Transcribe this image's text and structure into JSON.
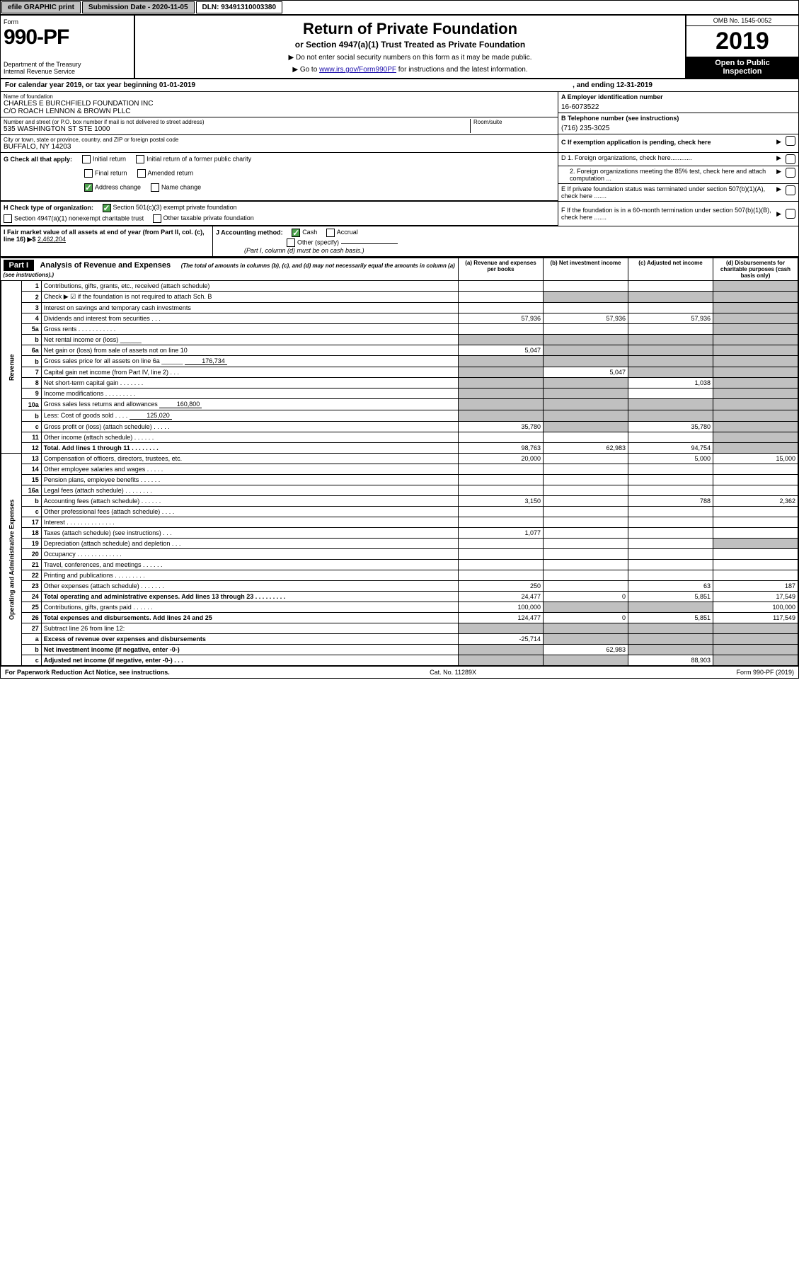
{
  "topbar": {
    "efile": "efile GRAPHIC print",
    "submission": "Submission Date - 2020-11-05",
    "dln": "DLN: 93491310003380"
  },
  "header": {
    "form_label": "Form",
    "form_no": "990-PF",
    "dept1": "Department of the Treasury",
    "dept2": "Internal Revenue Service",
    "title": "Return of Private Foundation",
    "subtitle": "or Section 4947(a)(1) Trust Treated as Private Foundation",
    "instr1": "▶ Do not enter social security numbers on this form as it may be made public.",
    "instr2_pre": "▶ Go to ",
    "instr2_link": "www.irs.gov/Form990PF",
    "instr2_post": " for instructions and the latest information.",
    "omb": "OMB No. 1545-0052",
    "year": "2019",
    "open_pub1": "Open to Public",
    "open_pub2": "Inspection"
  },
  "cal": {
    "pre": "For calendar year 2019, or tax year beginning 01-01-2019",
    "mid": ", and ending 12-31-2019"
  },
  "entity": {
    "name_lbl": "Name of foundation",
    "name1": "CHARLES E BURCHFIELD FOUNDATION INC",
    "name2": "C/O ROACH LENNON & BROWN PLLC",
    "addr_lbl": "Number and street (or P.O. box number if mail is not delivered to street address)",
    "addr": "535 WASHINGTON ST STE 1000",
    "room_lbl": "Room/suite",
    "city_lbl": "City or town, state or province, country, and ZIP or foreign postal code",
    "city": "BUFFALO, NY  14203",
    "a_lbl": "A Employer identification number",
    "a_val": "16-6073522",
    "b_lbl": "B Telephone number (see instructions)",
    "b_val": "(716) 235-3025",
    "c_lbl": "C If exemption application is pending, check here",
    "d1_lbl": "D 1. Foreign organizations, check here............",
    "d2_lbl": "2. Foreign organizations meeting the 85% test, check here and attach computation ...",
    "e_lbl": "E  If private foundation status was terminated under section 507(b)(1)(A), check here .......",
    "f_lbl": "F  If the foundation is in a 60-month termination under section 507(b)(1)(B), check here ......."
  },
  "g": {
    "lbl": "G Check all that apply:",
    "o1": "Initial return",
    "o2": "Initial return of a former public charity",
    "o3": "Final return",
    "o4": "Amended return",
    "o5": "Address change",
    "o6": "Name change"
  },
  "h": {
    "lbl": "H Check type of organization:",
    "o1": "Section 501(c)(3) exempt private foundation",
    "o2": "Section 4947(a)(1) nonexempt charitable trust",
    "o3": "Other taxable private foundation"
  },
  "i": {
    "lbl": "I Fair market value of all assets at end of year (from Part II, col. (c), line 16) ▶$ ",
    "val": "2,462,204",
    "j_lbl": "J Accounting method:",
    "j1": "Cash",
    "j2": "Accrual",
    "j3": "Other (specify)",
    "j_note": "(Part I, column (d) must be on cash basis.)"
  },
  "part1": {
    "hdr": "Part I",
    "title": "Analysis of Revenue and Expenses",
    "desc": "(The total of amounts in columns (b), (c), and (d) may not necessarily equal the amounts in column (a) (see instructions).)",
    "col_a": "(a)   Revenue and expenses per books",
    "col_b": "(b)  Net investment income",
    "col_c": "(c)  Adjusted net income",
    "col_d": "(d)  Disbursements for charitable purposes (cash basis only)",
    "rev_label": "Revenue",
    "exp_label": "Operating and Administrative Expenses"
  },
  "lines": [
    {
      "no": "1",
      "desc": "Contributions, gifts, grants, etc., received (attach schedule)",
      "a": "",
      "b": "",
      "c": "",
      "d": "",
      "d_shade": true
    },
    {
      "no": "2",
      "desc": "Check ▶ ☑ if the foundation is not required to attach Sch. B",
      "a": "",
      "b": "",
      "c": "",
      "d": "",
      "all_shade_bcd": true,
      "d_shade": true
    },
    {
      "no": "3",
      "desc": "Interest on savings and temporary cash investments",
      "a": "",
      "b": "",
      "c": "",
      "d": "",
      "d_shade": true
    },
    {
      "no": "4",
      "desc": "Dividends and interest from securities   .   .   .",
      "a": "57,936",
      "b": "57,936",
      "c": "57,936",
      "d": "",
      "d_shade": true
    },
    {
      "no": "5a",
      "desc": "Gross rents   .   .   .   .   .   .   .   .   .   .   .",
      "a": "",
      "b": "",
      "c": "",
      "d": "",
      "d_shade": true
    },
    {
      "no": "b",
      "desc": "Net rental income or (loss)  ______",
      "a": "",
      "b": "",
      "c": "",
      "d": "",
      "shade_abcd": true
    },
    {
      "no": "6a",
      "desc": "Net gain or (loss) from sale of assets not on line 10",
      "a": "5,047",
      "b": "",
      "c": "",
      "d": "",
      "b_shade": true,
      "c_shade": true,
      "d_shade": true
    },
    {
      "no": "b",
      "desc": "Gross sales price for all assets on line 6a ______",
      "inline": "176,734",
      "a": "",
      "b": "",
      "c": "",
      "d": "",
      "shade_abcd": true
    },
    {
      "no": "7",
      "desc": "Capital gain net income (from Part IV, line 2)   .   .   .",
      "a": "",
      "b": "5,047",
      "c": "",
      "d": "",
      "a_shade": true,
      "c_shade": true,
      "d_shade": true
    },
    {
      "no": "8",
      "desc": "Net short-term capital gain   .   .   .   .   .   .   .",
      "a": "",
      "b": "",
      "c": "1,038",
      "d": "",
      "a_shade": true,
      "b_shade": true,
      "d_shade": true
    },
    {
      "no": "9",
      "desc": "Income modifications   .   .   .   .   .   .   .   .   .",
      "a": "",
      "b": "",
      "c": "",
      "d": "",
      "a_shade": true,
      "b_shade": true,
      "d_shade": true
    },
    {
      "no": "10a",
      "desc": "Gross sales less returns and allowances",
      "inline": "160,800",
      "a": "",
      "b": "",
      "c": "",
      "d": "",
      "shade_abcd": true
    },
    {
      "no": "b",
      "desc": "Less: Cost of goods sold   .   .   .   .",
      "inline": "125,020",
      "a": "",
      "b": "",
      "c": "",
      "d": "",
      "shade_abcd": true
    },
    {
      "no": "c",
      "desc": "Gross profit or (loss) (attach schedule)   .   .   .   .   .",
      "a": "35,780",
      "b": "",
      "c": "35,780",
      "d": "",
      "b_shade": true,
      "d_shade": true
    },
    {
      "no": "11",
      "desc": "Other income (attach schedule)   .   .   .   .   .   .",
      "a": "",
      "b": "",
      "c": "",
      "d": "",
      "d_shade": true
    },
    {
      "no": "12",
      "desc": "Total. Add lines 1 through 11   .   .   .   .   .   .   .   .",
      "a": "98,763",
      "b": "62,983",
      "c": "94,754",
      "d": "",
      "bold": true,
      "d_shade": true
    },
    {
      "no": "13",
      "desc": "Compensation of officers, directors, trustees, etc.",
      "a": "20,000",
      "b": "",
      "c": "5,000",
      "d": "15,000"
    },
    {
      "no": "14",
      "desc": "Other employee salaries and wages   .   .   .   .   .",
      "a": "",
      "b": "",
      "c": "",
      "d": ""
    },
    {
      "no": "15",
      "desc": "Pension plans, employee benefits   .   .   .   .   .   .",
      "a": "",
      "b": "",
      "c": "",
      "d": ""
    },
    {
      "no": "16a",
      "desc": "Legal fees (attach schedule)   .   .   .   .   .   .   .   .",
      "a": "",
      "b": "",
      "c": "",
      "d": ""
    },
    {
      "no": "b",
      "desc": "Accounting fees (attach schedule)   .   .   .   .   .   .",
      "a": "3,150",
      "b": "",
      "c": "788",
      "d": "2,362"
    },
    {
      "no": "c",
      "desc": "Other professional fees (attach schedule)   .   .   .   .",
      "a": "",
      "b": "",
      "c": "",
      "d": ""
    },
    {
      "no": "17",
      "desc": "Interest   .   .   .   .   .   .   .   .   .   .   .   .   .   .",
      "a": "",
      "b": "",
      "c": "",
      "d": ""
    },
    {
      "no": "18",
      "desc": "Taxes (attach schedule) (see instructions)   .   .   .",
      "a": "1,077",
      "b": "",
      "c": "",
      "d": ""
    },
    {
      "no": "19",
      "desc": "Depreciation (attach schedule) and depletion   .   .   .",
      "a": "",
      "b": "",
      "c": "",
      "d": "",
      "d_shade": true
    },
    {
      "no": "20",
      "desc": "Occupancy   .   .   .   .   .   .   .   .   .   .   .   .   .",
      "a": "",
      "b": "",
      "c": "",
      "d": ""
    },
    {
      "no": "21",
      "desc": "Travel, conferences, and meetings   .   .   .   .   .   .",
      "a": "",
      "b": "",
      "c": "",
      "d": ""
    },
    {
      "no": "22",
      "desc": "Printing and publications   .   .   .   .   .   .   .   .   .",
      "a": "",
      "b": "",
      "c": "",
      "d": ""
    },
    {
      "no": "23",
      "desc": "Other expenses (attach schedule)   .   .   .   .   .   .   .",
      "a": "250",
      "b": "",
      "c": "63",
      "d": "187"
    },
    {
      "no": "24",
      "desc": "Total operating and administrative expenses. Add lines 13 through 23   .   .   .   .   .   .   .   .   .",
      "a": "24,477",
      "b": "0",
      "c": "5,851",
      "d": "17,549",
      "bold": true
    },
    {
      "no": "25",
      "desc": "Contributions, gifts, grants paid   .   .   .   .   .   .",
      "a": "100,000",
      "b": "",
      "c": "",
      "d": "100,000",
      "b_shade": true,
      "c_shade": true
    },
    {
      "no": "26",
      "desc": "Total expenses and disbursements. Add lines 24 and 25",
      "a": "124,477",
      "b": "0",
      "c": "5,851",
      "d": "117,549",
      "bold": true
    },
    {
      "no": "27",
      "desc": "Subtract line 26 from line 12:",
      "a": "",
      "b": "",
      "c": "",
      "d": "",
      "shade_abcd": true
    },
    {
      "no": "a",
      "desc": "Excess of revenue over expenses and disbursements",
      "a": "-25,714",
      "b": "",
      "c": "",
      "d": "",
      "bold": true,
      "b_shade": true,
      "c_shade": true,
      "d_shade": true
    },
    {
      "no": "b",
      "desc": "Net investment income (if negative, enter -0-)",
      "a": "",
      "b": "62,983",
      "c": "",
      "d": "",
      "bold": true,
      "a_shade": true,
      "c_shade": true,
      "d_shade": true
    },
    {
      "no": "c",
      "desc": "Adjusted net income (if negative, enter -0-)   .   .   .",
      "a": "",
      "b": "",
      "c": "88,903",
      "d": "",
      "bold": true,
      "a_shade": true,
      "b_shade": true,
      "d_shade": true
    }
  ],
  "footer": {
    "left": "For Paperwork Reduction Act Notice, see instructions.",
    "mid": "Cat. No. 11289X",
    "right": "Form 990-PF (2019)"
  },
  "colors": {
    "shade": "#c0c0c0",
    "check_green": "#4da34d",
    "link": "#1a0dab"
  }
}
